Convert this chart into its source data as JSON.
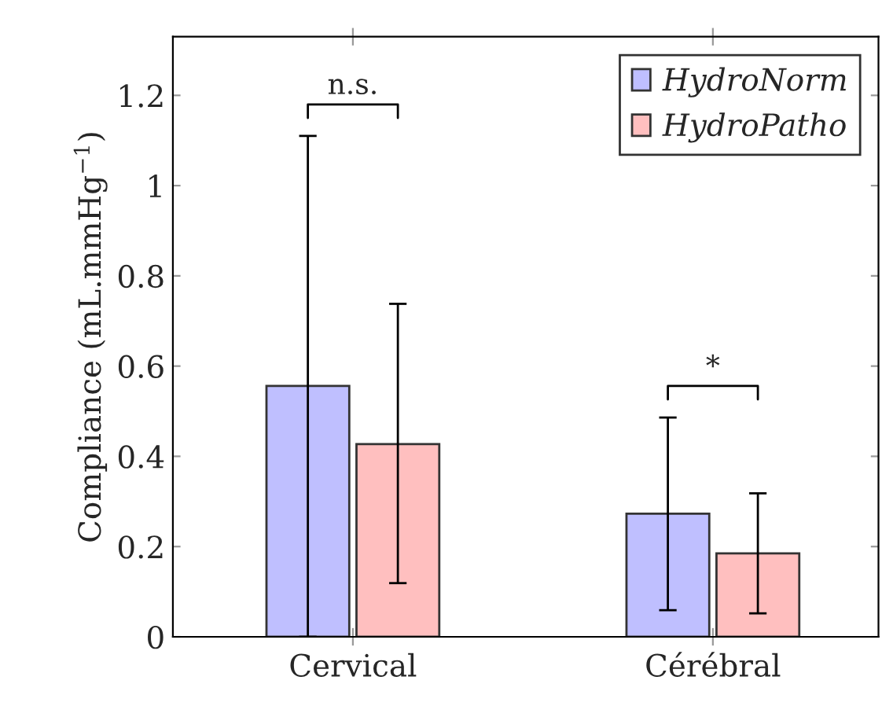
{
  "chart_data": {
    "type": "bar",
    "ylabel": "Compliance (mL.mmHg$^{−1}$)",
    "categories": [
      "Cervical",
      "Cérébral"
    ],
    "series": [
      {
        "name": "HydroNorm",
        "color": "#bfbfff",
        "values": [
          0.556,
          0.273
        ],
        "errors": [
          [
            0,
            1.11
          ],
          [
            0.059,
            0.486
          ]
        ]
      },
      {
        "name": "HydroPatho",
        "color": "#ffbfbf",
        "values": [
          0.427,
          0.185
        ],
        "errors": [
          [
            0.119,
            0.738
          ],
          [
            0.052,
            0.318
          ]
        ]
      }
    ],
    "ylim": [
      0,
      1.33
    ],
    "yticks": [
      0,
      0.2,
      0.4,
      0.6,
      0.8,
      1,
      1.2
    ],
    "annotations": [
      "n.s.",
      "*"
    ],
    "legend": "top right",
    "grid": false
  }
}
